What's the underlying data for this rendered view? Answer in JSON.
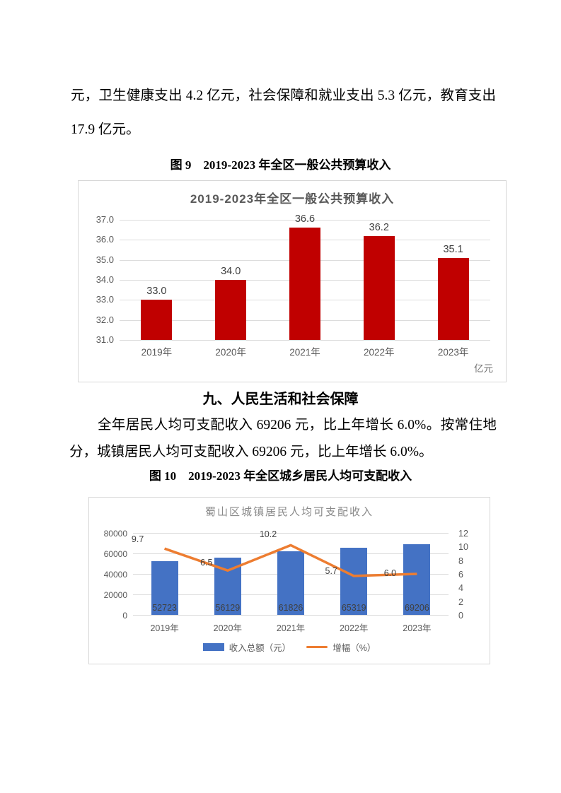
{
  "document": {
    "paragraph_top": "元，卫生健康支出 4.2 亿元，社会保障和就业支出 5.3 亿元，教育支出 17.9 亿元。",
    "figure9_caption": "图 9　2019-2023 年全区一般公共预算收入",
    "section_heading": "九、人民生活和社会保障",
    "section_paragraph": "全年居民人均可支配收入 69206 元，比上年增长 6.0%。按常住地分，城镇居民人均可支配收入 69206 元，比上年增长 6.0%。",
    "figure10_caption": "图 10　2019-2023 年全区城乡居民人均可支配收入"
  },
  "chart_data": [
    {
      "type": "bar",
      "title": "2019-2023年全区一般公共预算收入",
      "categories": [
        "2019年",
        "2020年",
        "2021年",
        "2022年",
        "2023年"
      ],
      "values": [
        33.0,
        34.0,
        36.6,
        36.2,
        35.1
      ],
      "data_labels": [
        "33.0",
        "34.0",
        "36.6",
        "36.2",
        "35.1"
      ],
      "ylim": [
        31.0,
        37.0
      ],
      "yticks": [
        "37.0",
        "36.0",
        "35.0",
        "34.0",
        "33.0",
        "32.0",
        "31.0"
      ],
      "unit_note": "亿元",
      "bar_color": "#C00000",
      "grid": true,
      "legend": "none"
    },
    {
      "type": "bar",
      "subtype": "bar-line-combo",
      "title": "蜀山区城镇居民人均可支配收入",
      "categories": [
        "2019年",
        "2020年",
        "2021年",
        "2022年",
        "2023年"
      ],
      "series": [
        {
          "name": "收入总额（元）",
          "kind": "bar",
          "axis": "left",
          "values": [
            52723,
            56129,
            61826,
            65319,
            69206
          ],
          "data_labels": [
            "52723",
            "56129",
            "61826",
            "65319",
            "69206"
          ],
          "color": "#4472C4"
        },
        {
          "name": "增幅（%）",
          "kind": "line",
          "axis": "right",
          "values": [
            9.7,
            6.5,
            10.2,
            5.7,
            6.0
          ],
          "data_labels": [
            "9.7",
            "6.5",
            "10.2",
            "5.7",
            "6.0"
          ],
          "color": "#ED7D31"
        }
      ],
      "left_ylim": [
        0,
        80000
      ],
      "left_yticks": [
        "80000",
        "60000",
        "40000",
        "20000",
        "0"
      ],
      "right_ylim": [
        0,
        12
      ],
      "right_yticks": [
        "12",
        "10",
        "8",
        "6",
        "4",
        "2",
        "0"
      ],
      "grid": true,
      "legend_position": "bottom"
    }
  ]
}
